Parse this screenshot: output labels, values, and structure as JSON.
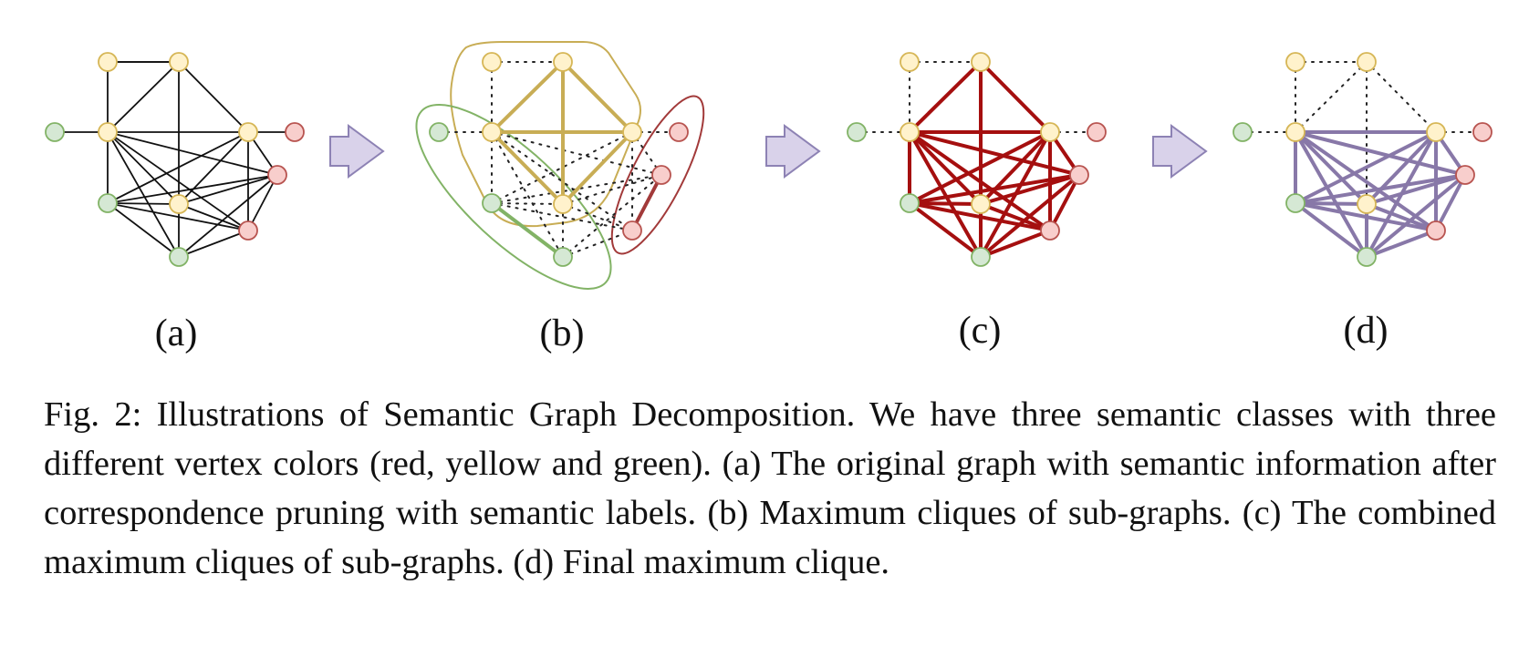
{
  "figure": {
    "panels": [
      {
        "id": "a",
        "label": "(a)"
      },
      {
        "id": "b",
        "label": "(b)"
      },
      {
        "id": "c",
        "label": "(c)"
      },
      {
        "id": "d",
        "label": "(d)"
      }
    ],
    "colors": {
      "yellow_fill": "#fff2cc",
      "yellow_stroke": "#d6b656",
      "green_fill": "#d5e8d4",
      "green_stroke": "#82b366",
      "red_fill": "#f8cecc",
      "red_stroke": "#b85450",
      "clique_yellow": "#c8ad55",
      "clique_green": "#82b366",
      "clique_red": "#a23a3a",
      "combined_red": "#a50f0f",
      "final_purple": "#8878a8",
      "arrow_fill": "#d9d2ea",
      "arrow_stroke": "#8d82b4"
    }
  },
  "caption": {
    "fig_label": "Fig. 2:",
    "text": "Illustrations of Semantic Graph Decomposition. We have three semantic classes with three different vertex colors (red, yellow and green). (a) The original graph with semantic information after correspondence pruning with semantic labels. (b) Maximum cliques of sub-graphs. (c) The combined maximum cliques of sub-graphs. (d) Final maximum clique."
  }
}
